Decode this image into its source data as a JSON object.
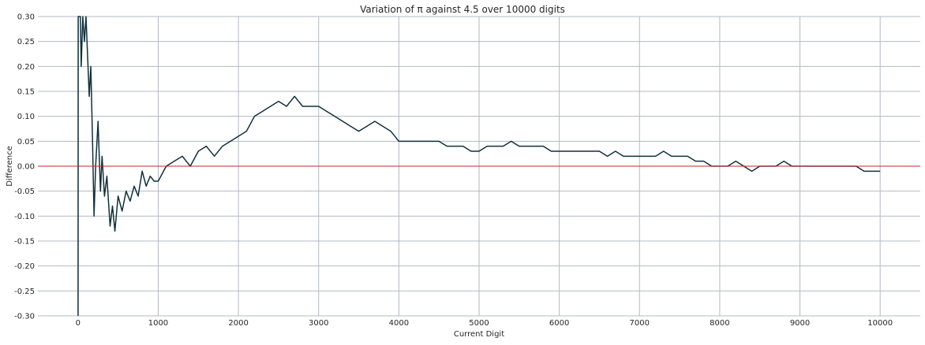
{
  "chart_data": {
    "type": "line",
    "title": "Variation of π against 4.5 over 10000 digits",
    "xlabel": "Current Digit",
    "ylabel": "Difference",
    "xlim": [
      -500,
      10500
    ],
    "ylim": [
      -0.3,
      0.3
    ],
    "x_ticks": [
      0,
      1000,
      2000,
      3000,
      4000,
      5000,
      6000,
      7000,
      8000,
      9000,
      10000
    ],
    "x_tick_labels": [
      "0",
      "1000",
      "2000",
      "3000",
      "4000",
      "5000",
      "6000",
      "7000",
      "8000",
      "9000",
      "10000"
    ],
    "y_ticks": [
      -0.3,
      -0.25,
      -0.2,
      -0.15,
      -0.1,
      -0.05,
      0.0,
      0.05,
      0.1,
      0.15,
      0.2,
      0.25,
      0.3
    ],
    "y_tick_labels": [
      "-0.30",
      "-0.25",
      "-0.20",
      "-0.15",
      "-0.10",
      "-0.05",
      "0.00",
      "0.05",
      "0.10",
      "0.15",
      "0.20",
      "0.25",
      "0.30"
    ],
    "grid": true,
    "reference_line": {
      "y": 0.0,
      "color": "#c0282d"
    },
    "series": [
      {
        "color": "#10303c",
        "x": [
          1,
          3,
          5,
          8,
          12,
          20,
          30,
          40,
          60,
          80,
          100,
          120,
          140,
          160,
          180,
          200,
          220,
          250,
          280,
          300,
          330,
          360,
          400,
          430,
          460,
          500,
          550,
          600,
          650,
          700,
          750,
          800,
          850,
          900,
          950,
          1000,
          1100,
          1200,
          1300,
          1400,
          1500,
          1600,
          1700,
          1800,
          1900,
          2000,
          2100,
          2200,
          2300,
          2400,
          2500,
          2600,
          2700,
          2800,
          2900,
          3000,
          3100,
          3200,
          3300,
          3400,
          3500,
          3600,
          3700,
          3800,
          3900,
          4000,
          4100,
          4200,
          4300,
          4400,
          4500,
          4600,
          4700,
          4800,
          4900,
          5000,
          5100,
          5200,
          5300,
          5400,
          5500,
          5600,
          5700,
          5800,
          5900,
          6000,
          6100,
          6200,
          6300,
          6400,
          6500,
          6600,
          6700,
          6800,
          6900,
          7000,
          7100,
          7200,
          7300,
          7400,
          7500,
          7600,
          7700,
          7800,
          7900,
          8000,
          8100,
          8200,
          8300,
          8400,
          8500,
          8600,
          8700,
          8800,
          8900,
          9000,
          9100,
          9200,
          9300,
          9400,
          9500,
          9600,
          9700,
          9800,
          9900,
          10000
        ],
        "y": [
          -0.3,
          0.3,
          0.3,
          0.3,
          0.3,
          0.3,
          0.3,
          0.2,
          0.3,
          0.25,
          0.3,
          0.22,
          0.14,
          0.2,
          0.06,
          -0.1,
          0.0,
          0.09,
          -0.05,
          0.02,
          -0.06,
          -0.02,
          -0.12,
          -0.08,
          -0.13,
          -0.06,
          -0.09,
          -0.05,
          -0.07,
          -0.04,
          -0.06,
          -0.01,
          -0.04,
          -0.02,
          -0.03,
          -0.03,
          0.0,
          0.01,
          0.02,
          0.0,
          0.03,
          0.04,
          0.02,
          0.04,
          0.05,
          0.06,
          0.07,
          0.1,
          0.11,
          0.12,
          0.13,
          0.12,
          0.14,
          0.12,
          0.12,
          0.12,
          0.11,
          0.1,
          0.09,
          0.08,
          0.07,
          0.08,
          0.09,
          0.08,
          0.07,
          0.05,
          0.05,
          0.05,
          0.05,
          0.05,
          0.05,
          0.04,
          0.04,
          0.04,
          0.03,
          0.03,
          0.04,
          0.04,
          0.04,
          0.05,
          0.04,
          0.04,
          0.04,
          0.04,
          0.03,
          0.03,
          0.03,
          0.03,
          0.03,
          0.03,
          0.03,
          0.02,
          0.03,
          0.02,
          0.02,
          0.02,
          0.02,
          0.02,
          0.03,
          0.02,
          0.02,
          0.02,
          0.01,
          0.01,
          0.0,
          0.0,
          0.0,
          0.01,
          0.0,
          -0.01,
          0.0,
          0.0,
          0.0,
          0.01,
          0.0,
          0.0,
          0.0,
          0.0,
          0.0,
          0.0,
          0.0,
          0.0,
          0.0,
          -0.01,
          -0.01,
          -0.01
        ]
      }
    ]
  }
}
